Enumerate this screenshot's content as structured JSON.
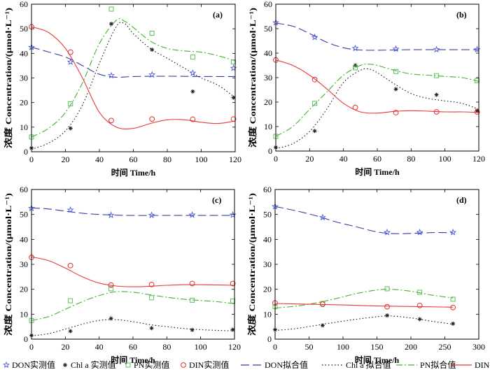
{
  "legend": [
    {
      "key": "don_obs",
      "label": "DON实测值",
      "kind": "marker",
      "marker": "star",
      "color": "#4f5bd5"
    },
    {
      "key": "chl_obs",
      "label": "Chl a 实测值",
      "kind": "marker",
      "marker": "asterisk",
      "color": "#222222"
    },
    {
      "key": "pn_obs",
      "label": "PN实测值",
      "kind": "marker",
      "marker": "square",
      "color": "#5cc05c"
    },
    {
      "key": "din_obs",
      "label": "DIN实测值",
      "kind": "marker",
      "marker": "circle",
      "color": "#e03030"
    },
    {
      "key": "don_fit",
      "label": "DON拟合值",
      "kind": "line",
      "dash": "12,5",
      "color": "#3a3aa8"
    },
    {
      "key": "chl_fit",
      "label": "Chl a 拟合值",
      "kind": "line",
      "dash": "1.5,3",
      "color": "#111111"
    },
    {
      "key": "pn_fit",
      "label": "PN拟合值",
      "kind": "line",
      "dash": "9,3,2,3",
      "color": "#44b22c"
    },
    {
      "key": "din_fit",
      "label": "DIN拟合值",
      "kind": "line",
      "dash": "",
      "color": "#e83a3a"
    }
  ],
  "chart_data": [
    {
      "panel_label": "(a)",
      "type": "line",
      "xlabel": "时间 Time/h",
      "ylabel": "浓度 Concentration/(μmol·L⁻¹)",
      "xlim": [
        0,
        120
      ],
      "ylim": [
        0,
        60
      ],
      "xticks": [
        0,
        20,
        40,
        60,
        80,
        100,
        120
      ],
      "yticks": [
        0,
        10,
        20,
        30,
        40,
        50,
        60
      ],
      "observed": {
        "x": [
          0,
          23,
          47,
          71,
          95,
          119
        ],
        "DON": [
          42.5,
          36.5,
          31,
          31.3,
          32,
          34
        ],
        "Chl a": [
          1.5,
          9.5,
          52,
          41.5,
          24.5,
          22
        ],
        "PN": [
          6,
          19.5,
          58,
          48.2,
          38.5,
          36.5
        ],
        "DIN": [
          50.8,
          40.5,
          12.7,
          13.3,
          13.2,
          13.3
        ]
      },
      "fitted": {
        "DON": [
          [
            0,
            42.5
          ],
          [
            20,
            38.5
          ],
          [
            30,
            35
          ],
          [
            40,
            31.5
          ],
          [
            50,
            30.3
          ],
          [
            60,
            30.6
          ],
          [
            80,
            30.7
          ],
          [
            100,
            30.6
          ],
          [
            120,
            30.6
          ]
        ],
        "Chl a": [
          [
            0,
            1
          ],
          [
            10,
            3.5
          ],
          [
            20,
            8.5
          ],
          [
            30,
            19
          ],
          [
            40,
            36
          ],
          [
            50,
            51
          ],
          [
            55,
            52
          ],
          [
            60,
            48
          ],
          [
            70,
            42
          ],
          [
            80,
            38
          ],
          [
            90,
            34
          ],
          [
            100,
            30
          ],
          [
            110,
            27
          ],
          [
            120,
            22
          ]
        ],
        "PN": [
          [
            0,
            6
          ],
          [
            10,
            9.5
          ],
          [
            20,
            16
          ],
          [
            30,
            28
          ],
          [
            40,
            44
          ],
          [
            50,
            53.5
          ],
          [
            55,
            53
          ],
          [
            60,
            50.5
          ],
          [
            70,
            45
          ],
          [
            80,
            42
          ],
          [
            90,
            41
          ],
          [
            100,
            40.5
          ],
          [
            110,
            39
          ],
          [
            120,
            37
          ]
        ],
        "DIN": [
          [
            0,
            50.8
          ],
          [
            10,
            48.5
          ],
          [
            20,
            42
          ],
          [
            30,
            30
          ],
          [
            40,
            16
          ],
          [
            50,
            10
          ],
          [
            60,
            9.5
          ],
          [
            70,
            11.5
          ],
          [
            80,
            13
          ],
          [
            90,
            13
          ],
          [
            100,
            12
          ],
          [
            110,
            11.5
          ],
          [
            120,
            12.5
          ]
        ]
      }
    },
    {
      "panel_label": "(b)",
      "type": "line",
      "xlabel": "时间 Time/h",
      "ylabel": "浓度 Concentration/(μmol·L⁻¹)",
      "xlim": [
        0,
        120
      ],
      "ylim": [
        0,
        60
      ],
      "xticks": [
        0,
        20,
        40,
        60,
        80,
        100,
        120
      ],
      "yticks": [
        0,
        10,
        20,
        30,
        40,
        50,
        60
      ],
      "observed": {
        "x": [
          0,
          23,
          47,
          71,
          95,
          119
        ],
        "DON": [
          52.5,
          46.5,
          42,
          41.7,
          41.5,
          41.5
        ],
        "Chl a": [
          1.5,
          8.2,
          35,
          25.3,
          23,
          16.5
        ],
        "PN": [
          6,
          19.5,
          34,
          32.5,
          30.8,
          28.8
        ],
        "DIN": [
          37.2,
          29.2,
          17.8,
          15.7,
          16,
          16
        ]
      },
      "fitted": {
        "DON": [
          [
            0,
            52.3
          ],
          [
            10,
            51
          ],
          [
            20,
            48
          ],
          [
            30,
            44.5
          ],
          [
            40,
            42.2
          ],
          [
            50,
            41.3
          ],
          [
            60,
            41.2
          ],
          [
            80,
            41.4
          ],
          [
            100,
            41.4
          ],
          [
            120,
            41.4
          ]
        ],
        "Chl a": [
          [
            0,
            1
          ],
          [
            10,
            3
          ],
          [
            20,
            8
          ],
          [
            30,
            17
          ],
          [
            40,
            28
          ],
          [
            50,
            33
          ],
          [
            55,
            33.5
          ],
          [
            60,
            32
          ],
          [
            70,
            27.5
          ],
          [
            80,
            23.5
          ],
          [
            90,
            21.5
          ],
          [
            100,
            20.5
          ],
          [
            110,
            19.5
          ],
          [
            120,
            17
          ]
        ],
        "PN": [
          [
            0,
            6
          ],
          [
            10,
            10
          ],
          [
            20,
            17
          ],
          [
            30,
            24
          ],
          [
            40,
            31
          ],
          [
            50,
            35
          ],
          [
            55,
            35.5
          ],
          [
            60,
            35
          ],
          [
            70,
            33
          ],
          [
            80,
            31.5
          ],
          [
            90,
            31
          ],
          [
            100,
            30.5
          ],
          [
            110,
            30
          ],
          [
            120,
            28.5
          ]
        ],
        "DIN": [
          [
            0,
            37.2
          ],
          [
            10,
            35
          ],
          [
            20,
            31
          ],
          [
            30,
            25.5
          ],
          [
            40,
            19.5
          ],
          [
            50,
            16
          ],
          [
            60,
            15.5
          ],
          [
            70,
            16.2
          ],
          [
            80,
            16.5
          ],
          [
            90,
            16.3
          ],
          [
            100,
            16
          ],
          [
            110,
            16
          ],
          [
            120,
            15.8
          ]
        ]
      }
    },
    {
      "panel_label": "(c)",
      "type": "line",
      "xlabel": "时间 Time/h",
      "ylabel": "浓度 Concentration/(μmol·L⁻¹)",
      "xlim": [
        0,
        120
      ],
      "ylim": [
        0,
        60
      ],
      "xticks": [
        0,
        20,
        40,
        60,
        80,
        100,
        120
      ],
      "yticks": [
        0,
        10,
        20,
        30,
        40,
        50,
        60
      ],
      "observed": {
        "x": [
          0,
          23,
          47,
          71,
          95,
          119
        ],
        "DON": [
          52.5,
          51.8,
          49.7,
          49.7,
          49.8,
          49.8
        ],
        "Chl a": [
          1.5,
          3.2,
          8.3,
          4.4,
          3.7,
          3.8
        ],
        "PN": [
          7.5,
          15.4,
          20.2,
          16.6,
          15.6,
          15.3
        ],
        "DIN": [
          32.8,
          29.5,
          21.7,
          21.9,
          22.3,
          22.3
        ]
      },
      "fitted": {
        "DON": [
          [
            0,
            52.6
          ],
          [
            10,
            52.2
          ],
          [
            20,
            51.3
          ],
          [
            30,
            50.5
          ],
          [
            40,
            50
          ],
          [
            50,
            49.7
          ],
          [
            60,
            49.6
          ],
          [
            80,
            49.6
          ],
          [
            100,
            49.6
          ],
          [
            120,
            49.6
          ]
        ],
        "Chl a": [
          [
            0,
            1.3
          ],
          [
            10,
            2.2
          ],
          [
            20,
            4
          ],
          [
            30,
            6
          ],
          [
            40,
            7.5
          ],
          [
            50,
            7.8
          ],
          [
            60,
            7
          ],
          [
            70,
            5.8
          ],
          [
            80,
            5
          ],
          [
            90,
            4.3
          ],
          [
            100,
            3.8
          ],
          [
            110,
            3.5
          ],
          [
            120,
            3.3
          ]
        ],
        "PN": [
          [
            0,
            7.5
          ],
          [
            10,
            9
          ],
          [
            20,
            12
          ],
          [
            30,
            15
          ],
          [
            40,
            17.5
          ],
          [
            50,
            19
          ],
          [
            60,
            18.8
          ],
          [
            70,
            17.8
          ],
          [
            80,
            16.8
          ],
          [
            90,
            16
          ],
          [
            100,
            15.5
          ],
          [
            110,
            15
          ],
          [
            120,
            14.2
          ]
        ],
        "DIN": [
          [
            0,
            33
          ],
          [
            10,
            31.5
          ],
          [
            20,
            28.5
          ],
          [
            30,
            25
          ],
          [
            40,
            22.5
          ],
          [
            50,
            21.3
          ],
          [
            60,
            21
          ],
          [
            70,
            21.2
          ],
          [
            80,
            21.6
          ],
          [
            90,
            21.8
          ],
          [
            100,
            21.8
          ],
          [
            110,
            21.7
          ],
          [
            120,
            21.6
          ]
        ]
      }
    },
    {
      "panel_label": "(d)",
      "type": "line",
      "xlabel": "时间 Time/h",
      "ylabel": "浓度 Concentration/(μmol·L⁻¹)",
      "xlim": [
        0,
        300
      ],
      "ylim": [
        0,
        60
      ],
      "xticks": [
        0,
        50,
        100,
        150,
        200,
        250,
        300
      ],
      "yticks": [
        0,
        10,
        20,
        30,
        40,
        50,
        60
      ],
      "observed": {
        "x": [
          0,
          70,
          165,
          213,
          262
        ],
        "DON": [
          53.2,
          48.8,
          42.8,
          42.8,
          42.8
        ],
        "Chl a": [
          3.8,
          5.5,
          9.5,
          8,
          6.2
        ],
        "PN": [
          13,
          14.3,
          20.2,
          18.8,
          16
        ],
        "DIN": [
          14.5,
          14,
          13,
          13.5,
          12.7
        ]
      },
      "fitted": {
        "DON": [
          [
            0,
            53.2
          ],
          [
            30,
            51.5
          ],
          [
            60,
            49.5
          ],
          [
            90,
            47
          ],
          [
            120,
            45
          ],
          [
            150,
            43
          ],
          [
            175,
            42.3
          ],
          [
            200,
            42.4
          ],
          [
            230,
            42.7
          ],
          [
            262,
            42.7
          ]
        ],
        "Chl a": [
          [
            0,
            3.5
          ],
          [
            30,
            4.2
          ],
          [
            60,
            5.5
          ],
          [
            90,
            6.8
          ],
          [
            120,
            8
          ],
          [
            150,
            9
          ],
          [
            170,
            9.3
          ],
          [
            200,
            8.5
          ],
          [
            230,
            7.2
          ],
          [
            262,
            6
          ]
        ],
        "PN": [
          [
            0,
            12.5
          ],
          [
            30,
            13.2
          ],
          [
            60,
            14.5
          ],
          [
            90,
            16.3
          ],
          [
            120,
            18.3
          ],
          [
            150,
            19.7
          ],
          [
            170,
            20
          ],
          [
            200,
            19.2
          ],
          [
            230,
            17.7
          ],
          [
            262,
            16.5
          ]
        ],
        "DIN": [
          [
            0,
            14.3
          ],
          [
            50,
            14
          ],
          [
            100,
            13.7
          ],
          [
            150,
            13.3
          ],
          [
            200,
            13.1
          ],
          [
            262,
            12.8
          ]
        ]
      }
    }
  ]
}
